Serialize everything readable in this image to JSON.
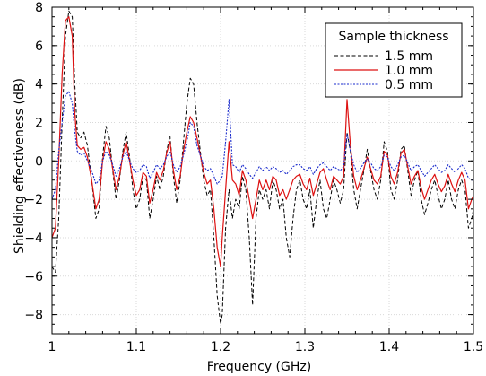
{
  "chart_data": {
    "type": "line",
    "title": "",
    "xlabel": "Frequency (GHz)",
    "ylabel": "Shielding effectiveness (dB)",
    "xlim": [
      1.0,
      1.5
    ],
    "ylim": [
      -9,
      8
    ],
    "xticks": [
      1.0,
      1.1,
      1.2,
      1.3,
      1.4,
      1.5
    ],
    "xtick_labels": [
      "1",
      "1.1",
      "1.2",
      "1.3",
      "1.4",
      "1.5"
    ],
    "yticks": [
      -8,
      -6,
      -4,
      -2,
      0,
      2,
      4,
      6,
      8
    ],
    "ytick_labels": [
      "−8",
      "−6",
      "−4",
      "−2",
      "0",
      "2",
      "4",
      "6",
      "8"
    ],
    "grid": true,
    "legend": {
      "title": "Sample thickness",
      "position": "top-right"
    },
    "series": [
      {
        "name": "1.5 mm",
        "color": "#000000",
        "style": "dashed",
        "x": [
          1.0,
          1.004,
          1.008,
          1.012,
          1.016,
          1.02,
          1.024,
          1.027,
          1.03,
          1.034,
          1.038,
          1.042,
          1.047,
          1.052,
          1.056,
          1.06,
          1.064,
          1.068,
          1.072,
          1.076,
          1.08,
          1.084,
          1.088,
          1.092,
          1.096,
          1.1,
          1.104,
          1.108,
          1.112,
          1.116,
          1.12,
          1.124,
          1.128,
          1.132,
          1.136,
          1.14,
          1.144,
          1.148,
          1.152,
          1.156,
          1.16,
          1.164,
          1.168,
          1.172,
          1.176,
          1.18,
          1.184,
          1.188,
          1.192,
          1.196,
          1.2,
          1.202,
          1.206,
          1.21,
          1.214,
          1.218,
          1.222,
          1.226,
          1.23,
          1.234,
          1.238,
          1.242,
          1.246,
          1.25,
          1.254,
          1.258,
          1.262,
          1.266,
          1.27,
          1.274,
          1.278,
          1.282,
          1.286,
          1.29,
          1.294,
          1.298,
          1.302,
          1.306,
          1.31,
          1.314,
          1.318,
          1.322,
          1.326,
          1.33,
          1.334,
          1.338,
          1.342,
          1.346,
          1.35,
          1.354,
          1.358,
          1.362,
          1.366,
          1.37,
          1.374,
          1.378,
          1.382,
          1.386,
          1.39,
          1.394,
          1.398,
          1.402,
          1.406,
          1.41,
          1.414,
          1.418,
          1.422,
          1.426,
          1.43,
          1.434,
          1.438,
          1.442,
          1.446,
          1.45,
          1.454,
          1.458,
          1.462,
          1.466,
          1.47,
          1.474,
          1.478,
          1.482,
          1.486,
          1.49,
          1.494,
          1.498,
          1.5
        ],
        "y": [
          -5.5,
          -5.8,
          -3.0,
          2.0,
          6.5,
          7.8,
          7.5,
          4.0,
          1.5,
          1.2,
          1.5,
          0.8,
          -1.0,
          -3.0,
          -2.5,
          0.2,
          1.8,
          1.2,
          -0.5,
          -2.0,
          -1.0,
          0.5,
          1.5,
          0.2,
          -1.5,
          -2.5,
          -2.0,
          -0.8,
          -1.0,
          -3.0,
          -2.0,
          -0.8,
          -1.5,
          -0.8,
          0.5,
          1.3,
          -0.8,
          -2.2,
          -1.0,
          1.0,
          3.0,
          4.3,
          4.0,
          2.0,
          0.5,
          -1.0,
          -1.8,
          -1.5,
          -4.0,
          -7.0,
          -8.5,
          -8.0,
          -3.5,
          -1.5,
          -3.0,
          -2.0,
          -2.5,
          -0.8,
          -1.5,
          -4.0,
          -7.5,
          -3.0,
          -1.5,
          -2.0,
          -1.5,
          -2.5,
          -1.0,
          -1.5,
          -2.5,
          -2.0,
          -4.0,
          -5.0,
          -3.0,
          -1.5,
          -1.0,
          -2.0,
          -2.5,
          -1.5,
          -3.5,
          -2.0,
          -1.0,
          -2.5,
          -3.0,
          -2.0,
          -1.0,
          -1.5,
          -2.2,
          -1.5,
          1.5,
          0.5,
          -1.5,
          -2.5,
          -1.5,
          -0.5,
          0.6,
          -0.5,
          -1.5,
          -2.0,
          -1.0,
          1.0,
          0.5,
          -1.5,
          -2.0,
          -1.0,
          0.6,
          0.8,
          -0.5,
          -1.8,
          -1.0,
          -0.5,
          -2.0,
          -2.8,
          -2.2,
          -1.5,
          -1.0,
          -1.8,
          -2.5,
          -2.0,
          -1.0,
          -2.0,
          -2.5,
          -1.5,
          -1.0,
          -1.5,
          -3.5,
          -3.0,
          -2.5
        ]
      },
      {
        "name": "1.0 mm",
        "color": "#dd1111",
        "style": "solid",
        "x": [
          1.0,
          1.004,
          1.008,
          1.012,
          1.016,
          1.02,
          1.024,
          1.027,
          1.03,
          1.034,
          1.038,
          1.042,
          1.047,
          1.052,
          1.056,
          1.06,
          1.064,
          1.068,
          1.072,
          1.076,
          1.08,
          1.084,
          1.088,
          1.092,
          1.096,
          1.1,
          1.104,
          1.108,
          1.112,
          1.116,
          1.12,
          1.124,
          1.128,
          1.132,
          1.136,
          1.14,
          1.144,
          1.148,
          1.152,
          1.156,
          1.16,
          1.164,
          1.168,
          1.172,
          1.176,
          1.18,
          1.184,
          1.188,
          1.192,
          1.196,
          1.2,
          1.202,
          1.206,
          1.21,
          1.214,
          1.218,
          1.222,
          1.226,
          1.23,
          1.234,
          1.238,
          1.242,
          1.246,
          1.25,
          1.254,
          1.258,
          1.262,
          1.266,
          1.27,
          1.274,
          1.278,
          1.282,
          1.286,
          1.29,
          1.294,
          1.298,
          1.302,
          1.306,
          1.31,
          1.314,
          1.318,
          1.322,
          1.326,
          1.33,
          1.334,
          1.338,
          1.342,
          1.346,
          1.35,
          1.354,
          1.358,
          1.362,
          1.366,
          1.37,
          1.374,
          1.378,
          1.382,
          1.386,
          1.39,
          1.394,
          1.398,
          1.402,
          1.406,
          1.41,
          1.414,
          1.418,
          1.422,
          1.426,
          1.43,
          1.434,
          1.438,
          1.442,
          1.446,
          1.45,
          1.454,
          1.458,
          1.462,
          1.466,
          1.47,
          1.474,
          1.478,
          1.482,
          1.486,
          1.49,
          1.494,
          1.498,
          1.5
        ],
        "y": [
          -4.0,
          -3.5,
          0.0,
          4.5,
          7.3,
          7.5,
          6.5,
          2.5,
          0.8,
          0.6,
          0.7,
          0.2,
          -1.0,
          -2.5,
          -2.0,
          0.0,
          1.0,
          0.6,
          -0.4,
          -1.5,
          -0.8,
          0.3,
          1.0,
          0.0,
          -1.0,
          -1.8,
          -1.5,
          -0.6,
          -0.8,
          -2.2,
          -1.5,
          -0.6,
          -1.0,
          -0.5,
          0.4,
          1.0,
          -0.5,
          -1.5,
          -0.8,
          0.5,
          1.5,
          2.3,
          2.0,
          1.2,
          0.3,
          -0.6,
          -1.2,
          -1.0,
          -2.5,
          -4.5,
          -5.5,
          -4.0,
          -1.5,
          1.0,
          -1.0,
          -1.2,
          -1.8,
          -0.5,
          -1.0,
          -2.0,
          -3.0,
          -2.0,
          -1.0,
          -1.5,
          -1.0,
          -1.5,
          -0.8,
          -1.0,
          -1.8,
          -1.5,
          -2.0,
          -1.5,
          -1.0,
          -0.8,
          -0.7,
          -1.2,
          -1.5,
          -0.9,
          -1.8,
          -1.2,
          -0.6,
          -0.4,
          -1.0,
          -1.5,
          -0.8,
          -1.0,
          -1.2,
          -0.8,
          3.2,
          0.8,
          -0.8,
          -1.5,
          -1.0,
          -0.4,
          0.2,
          -0.4,
          -1.0,
          -1.2,
          -0.8,
          0.5,
          0.3,
          -0.8,
          -1.2,
          -0.6,
          0.4,
          0.6,
          -0.3,
          -1.2,
          -0.8,
          -0.5,
          -1.4,
          -2.0,
          -1.5,
          -1.0,
          -0.7,
          -1.2,
          -1.6,
          -1.3,
          -0.7,
          -1.2,
          -1.6,
          -1.0,
          -0.6,
          -1.0,
          -2.5,
          -2.0,
          -1.8
        ]
      },
      {
        "name": "0.5 mm",
        "color": "#1a2bcc",
        "style": "dotted",
        "x": [
          1.0,
          1.004,
          1.008,
          1.012,
          1.016,
          1.02,
          1.024,
          1.027,
          1.03,
          1.034,
          1.038,
          1.042,
          1.047,
          1.052,
          1.056,
          1.06,
          1.064,
          1.068,
          1.072,
          1.076,
          1.08,
          1.084,
          1.088,
          1.092,
          1.096,
          1.1,
          1.104,
          1.108,
          1.112,
          1.116,
          1.12,
          1.124,
          1.128,
          1.132,
          1.136,
          1.14,
          1.144,
          1.148,
          1.152,
          1.156,
          1.16,
          1.164,
          1.168,
          1.172,
          1.176,
          1.18,
          1.184,
          1.188,
          1.192,
          1.196,
          1.2,
          1.202,
          1.206,
          1.21,
          1.214,
          1.218,
          1.222,
          1.226,
          1.23,
          1.234,
          1.238,
          1.242,
          1.246,
          1.25,
          1.254,
          1.258,
          1.262,
          1.266,
          1.27,
          1.274,
          1.278,
          1.282,
          1.286,
          1.29,
          1.294,
          1.298,
          1.302,
          1.306,
          1.31,
          1.314,
          1.318,
          1.322,
          1.326,
          1.33,
          1.334,
          1.338,
          1.342,
          1.346,
          1.35,
          1.354,
          1.358,
          1.362,
          1.366,
          1.37,
          1.374,
          1.378,
          1.382,
          1.386,
          1.39,
          1.394,
          1.398,
          1.402,
          1.406,
          1.41,
          1.414,
          1.418,
          1.422,
          1.426,
          1.43,
          1.434,
          1.438,
          1.442,
          1.446,
          1.45,
          1.454,
          1.458,
          1.462,
          1.466,
          1.47,
          1.474,
          1.478,
          1.482,
          1.486,
          1.49,
          1.494,
          1.498,
          1.5
        ],
        "y": [
          -2.0,
          -1.5,
          0.5,
          2.0,
          3.4,
          3.6,
          3.0,
          1.5,
          0.5,
          0.3,
          0.4,
          0.0,
          -0.5,
          -1.2,
          -1.0,
          0.0,
          0.5,
          0.3,
          -0.2,
          -0.8,
          -0.4,
          0.2,
          0.5,
          0.0,
          -0.4,
          -0.6,
          -0.5,
          -0.2,
          -0.3,
          -0.9,
          -0.6,
          -0.2,
          -0.4,
          -0.2,
          0.2,
          0.5,
          -0.2,
          -0.6,
          -0.3,
          0.3,
          1.0,
          2.0,
          1.8,
          0.8,
          0.3,
          -0.3,
          -0.5,
          -0.4,
          -0.8,
          -1.2,
          -1.0,
          -0.8,
          1.0,
          3.2,
          -0.2,
          -0.3,
          -0.6,
          -0.2,
          -0.4,
          -0.7,
          -0.9,
          -0.6,
          -0.3,
          -0.5,
          -0.3,
          -0.5,
          -0.3,
          -0.4,
          -0.6,
          -0.5,
          -0.7,
          -0.5,
          -0.3,
          -0.2,
          -0.2,
          -0.4,
          -0.5,
          -0.3,
          -0.7,
          -0.4,
          -0.2,
          -0.1,
          -0.3,
          -0.5,
          -0.3,
          -0.4,
          -0.5,
          -0.3,
          1.4,
          0.5,
          -0.2,
          -0.6,
          -0.4,
          -0.1,
          0.1,
          -0.1,
          -0.4,
          -0.5,
          -0.3,
          0.3,
          0.2,
          -0.3,
          -0.5,
          -0.2,
          0.2,
          0.3,
          -0.1,
          -0.5,
          -0.3,
          -0.2,
          -0.5,
          -0.8,
          -0.6,
          -0.4,
          -0.2,
          -0.4,
          -0.6,
          -0.5,
          -0.2,
          -0.4,
          -0.6,
          -0.4,
          -0.2,
          -0.4,
          -0.9,
          -1.0,
          -1.0
        ]
      }
    ]
  }
}
